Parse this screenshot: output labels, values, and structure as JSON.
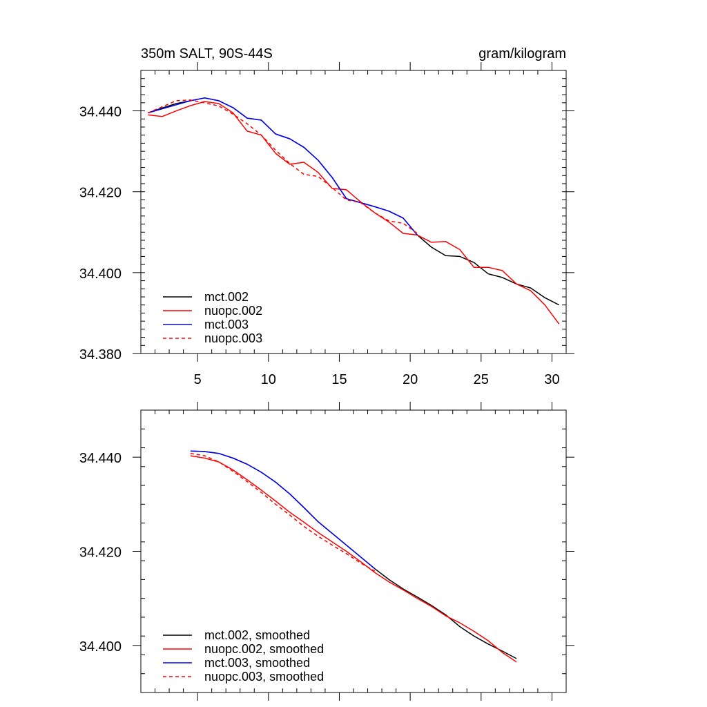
{
  "chart_data": [
    {
      "type": "line",
      "title_left": "350m SALT, 90S-44S",
      "title_right": "gram/kilogram",
      "xlim": [
        1.0,
        31.0
      ],
      "ylim": [
        34.38,
        34.45
      ],
      "xticks": [
        5,
        10,
        15,
        20,
        25,
        30
      ],
      "xtick_labels": [
        "5",
        "10",
        "15",
        "20",
        "25",
        "30"
      ],
      "yticks": [
        34.38,
        34.4,
        34.42,
        34.44
      ],
      "ytick_labels": [
        "34.380",
        "34.400",
        "34.420",
        "34.440"
      ],
      "legend_position": "bottom-left",
      "series": [
        {
          "name": "mct.002",
          "color": "#000000",
          "dash": "solid",
          "x": [
            1.5,
            2.5,
            3.5,
            4.5,
            5.5,
            6.5,
            7.5,
            8.5,
            9.5,
            10.5,
            11.5,
            12.5,
            13.5,
            14.5,
            15.5,
            16.5,
            17.5,
            18.5,
            19.5,
            20.5,
            21.5,
            22.5,
            23.5,
            24.5,
            25.5,
            26.5,
            27.5,
            28.5,
            29.5,
            30.5
          ],
          "y": [
            34.4395,
            34.4407,
            34.4418,
            34.4425,
            34.4432,
            34.4425,
            34.4408,
            34.4382,
            34.4377,
            34.4343,
            34.4331,
            34.431,
            34.4278,
            34.4235,
            34.4183,
            34.4173,
            34.4163,
            34.4152,
            34.4135,
            34.4093,
            34.4063,
            34.4042,
            34.404,
            34.4025,
            34.3997,
            34.3988,
            34.3972,
            34.3962,
            34.3938,
            34.392
          ]
        },
        {
          "name": "nuopc.002",
          "color": "#ff0000",
          "dash": "solid",
          "x": [
            1.5,
            2.5,
            3.5,
            4.5,
            5.5,
            6.5,
            7.5,
            8.5,
            9.5,
            10.5,
            11.5,
            12.5,
            13.5,
            14.5,
            15.5,
            16.5,
            17.5,
            18.5,
            19.5,
            20.5,
            21.5,
            22.5,
            23.5,
            24.5,
            25.5,
            26.5,
            27.5,
            28.5,
            29.5,
            30.5
          ],
          "y": [
            34.439,
            34.4386,
            34.44,
            34.4413,
            34.4423,
            34.4418,
            34.4395,
            34.435,
            34.434,
            34.4295,
            34.4268,
            34.4273,
            34.4248,
            34.4208,
            34.4205,
            34.4175,
            34.4148,
            34.4125,
            34.4097,
            34.4093,
            34.4075,
            34.4077,
            34.4057,
            34.4013,
            34.4013,
            34.4005,
            34.3972,
            34.3955,
            34.392,
            34.3873
          ]
        },
        {
          "name": "mct.003",
          "color": "#0000ff",
          "dash": "solid",
          "x": [
            1.5,
            2.5,
            3.5,
            4.5,
            5.5,
            6.5,
            7.5,
            8.5,
            9.5,
            10.5,
            11.5,
            12.5,
            13.5,
            14.5,
            15.5,
            16.5,
            17.5,
            18.5,
            19.5,
            20.5
          ],
          "y": [
            34.4395,
            34.4405,
            34.4415,
            34.4425,
            34.4432,
            34.4425,
            34.4408,
            34.4382,
            34.4377,
            34.4343,
            34.4331,
            34.431,
            34.4278,
            34.4235,
            34.4183,
            34.4173,
            34.4163,
            34.4152,
            34.4135,
            34.4093
          ]
        },
        {
          "name": "nuopc.003",
          "color": "#ff0000",
          "dash": "dashed",
          "x": [
            1.5,
            2.5,
            3.5,
            4.5,
            5.5,
            6.5,
            7.5,
            8.5,
            9.5,
            10.5,
            11.5,
            12.5,
            13.5,
            14.5,
            15.5,
            16.5,
            17.5,
            18.5,
            19.5,
            20.5
          ],
          "y": [
            34.4395,
            34.441,
            34.4425,
            34.4427,
            34.442,
            34.4412,
            34.4392,
            34.4368,
            34.434,
            34.4303,
            34.427,
            34.4243,
            34.4238,
            34.421,
            34.418,
            34.4173,
            34.4148,
            34.4128,
            34.4122,
            34.4097
          ]
        }
      ]
    },
    {
      "type": "line",
      "xlim": [
        1.0,
        31.0
      ],
      "ylim": [
        34.39,
        34.45
      ],
      "xticks": [
        5,
        10,
        15,
        20,
        25,
        30
      ],
      "xtick_labels": [
        "",
        "",
        "",
        "",
        "",
        ""
      ],
      "yticks": [
        34.4,
        34.42,
        34.44
      ],
      "ytick_labels": [
        "34.400",
        "34.420",
        "34.440"
      ],
      "legend_position": "bottom-left",
      "series": [
        {
          "name": "mct.002, smoothed",
          "color": "#000000",
          "dash": "solid",
          "x": [
            4.5,
            5.5,
            6.5,
            7.5,
            8.5,
            9.5,
            10.5,
            11.5,
            12.5,
            13.5,
            14.5,
            15.5,
            16.5,
            17.5,
            18.5,
            19.5,
            20.5,
            21.5,
            22.5,
            23.5,
            24.5,
            25.5,
            26.5,
            27.5
          ],
          "y": [
            34.4413,
            34.4412,
            34.4408,
            34.4398,
            34.4385,
            34.4368,
            34.4347,
            34.4322,
            34.4293,
            34.4263,
            34.4238,
            34.4213,
            34.4188,
            34.4163,
            34.414,
            34.412,
            34.4103,
            34.4085,
            34.4065,
            34.404,
            34.402,
            34.4003,
            34.3988,
            34.3972
          ]
        },
        {
          "name": "nuopc.002, smoothed",
          "color": "#ff0000",
          "dash": "solid",
          "x": [
            4.5,
            5.5,
            6.5,
            7.5,
            8.5,
            9.5,
            10.5,
            11.5,
            12.5,
            13.5,
            14.5,
            15.5,
            16.5,
            17.5,
            18.5,
            19.5,
            20.5,
            21.5,
            22.5,
            23.5,
            24.5,
            25.5,
            26.5,
            27.5
          ],
          "y": [
            34.4403,
            34.4398,
            34.439,
            34.4373,
            34.4352,
            34.433,
            34.4307,
            34.4283,
            34.4262,
            34.424,
            34.422,
            34.42,
            34.4178,
            34.4155,
            34.4135,
            34.4118,
            34.41,
            34.4083,
            34.4063,
            34.4048,
            34.403,
            34.401,
            34.3985,
            34.3965
          ]
        },
        {
          "name": "mct.003, smoothed",
          "color": "#0000ff",
          "dash": "solid",
          "x": [
            4.5,
            5.5,
            6.5,
            7.5,
            8.5,
            9.5,
            10.5,
            11.5,
            12.5,
            13.5,
            14.5,
            15.5,
            16.5,
            17.5
          ],
          "y": [
            34.4413,
            34.4412,
            34.4408,
            34.4398,
            34.4385,
            34.4368,
            34.4347,
            34.4322,
            34.4293,
            34.4263,
            34.4238,
            34.4213,
            34.4188,
            34.4163
          ]
        },
        {
          "name": "nuopc.003, smoothed",
          "color": "#ff0000",
          "dash": "dashed",
          "x": [
            4.5,
            5.5,
            6.5,
            7.5,
            8.5,
            9.5,
            10.5,
            11.5,
            12.5,
            13.5,
            14.5,
            15.5,
            16.5,
            17.5
          ],
          "y": [
            34.4408,
            34.4403,
            34.439,
            34.437,
            34.4348,
            34.4325,
            34.43,
            34.4277,
            34.4253,
            34.4232,
            34.4213,
            34.4195,
            34.4175,
            34.4158
          ]
        }
      ]
    }
  ]
}
